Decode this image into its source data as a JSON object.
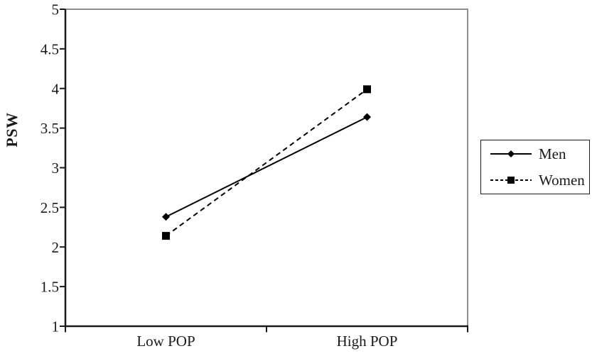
{
  "figure": {
    "background": "#ffffff"
  },
  "chart_data": {
    "type": "line",
    "title": "",
    "xlabel": "",
    "ylabel": "PSW",
    "categories": [
      "Low POP",
      "High POP"
    ],
    "series": [
      {
        "name": "Men",
        "values": [
          2.38,
          3.64
        ],
        "line_style": "solid",
        "marker": "diamond",
        "color": "#000000"
      },
      {
        "name": "Women",
        "values": [
          2.14,
          3.99
        ],
        "line_style": "dashed",
        "marker": "square",
        "color": "#000000"
      }
    ],
    "ylim": [
      1,
      5
    ],
    "yticks": [
      1,
      1.5,
      2,
      2.5,
      3,
      3.5,
      4,
      4.5,
      5
    ],
    "grid": false,
    "legend_position": "right",
    "colors": {
      "axis": "#1a1a1a",
      "frame": "#8d8d8d",
      "text": "#1a1a1a",
      "line": "#000000"
    }
  }
}
